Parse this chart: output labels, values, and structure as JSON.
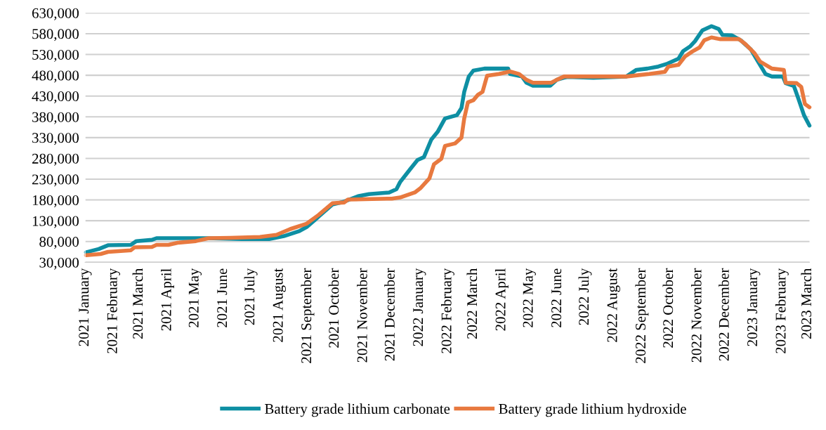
{
  "chart_data": {
    "type": "line",
    "legend": "bottom",
    "grid": "y",
    "line_style": "solid",
    "marker": "none",
    "xlim": [
      "2021-01-01",
      "2023-03-03"
    ],
    "xticks": [
      {
        "value": "2021-01-01",
        "label": "2021 January"
      },
      {
        "value": "2021-02-01",
        "label": "2021 February"
      },
      {
        "value": "2021-03-01",
        "label": "2021 March"
      },
      {
        "value": "2021-04-01",
        "label": "2021 April"
      },
      {
        "value": "2021-05-01",
        "label": "2021 May"
      },
      {
        "value": "2021-06-01",
        "label": "2021 June"
      },
      {
        "value": "2021-07-01",
        "label": "2021 July"
      },
      {
        "value": "2021-08-01",
        "label": "2021 August"
      },
      {
        "value": "2021-09-01",
        "label": "2021 September"
      },
      {
        "value": "2021-10-01",
        "label": "2021 October"
      },
      {
        "value": "2021-11-01",
        "label": "2021 November"
      },
      {
        "value": "2021-12-01",
        "label": "2021 December"
      },
      {
        "value": "2022-01-01",
        "label": "2022 January"
      },
      {
        "value": "2022-02-01",
        "label": "2022 February"
      },
      {
        "value": "2022-03-01",
        "label": "2022 March"
      },
      {
        "value": "2022-04-01",
        "label": "2022 April"
      },
      {
        "value": "2022-05-01",
        "label": "2022 May"
      },
      {
        "value": "2022-06-01",
        "label": "2022 June"
      },
      {
        "value": "2022-07-01",
        "label": "2022 July"
      },
      {
        "value": "2022-08-01",
        "label": "2022 August"
      },
      {
        "value": "2022-09-01",
        "label": "2022 September"
      },
      {
        "value": "2022-10-01",
        "label": "2022 October"
      },
      {
        "value": "2022-11-01",
        "label": "2022 November"
      },
      {
        "value": "2022-12-01",
        "label": "2022 December"
      },
      {
        "value": "2023-01-01",
        "label": "2023 January"
      },
      {
        "value": "2023-02-01",
        "label": "2023 February"
      },
      {
        "value": "2023-03-01",
        "label": "2023 March"
      }
    ],
    "ylim": [
      30000,
      630000
    ],
    "yticks": [
      {
        "value": 30000,
        "label": "30,000"
      },
      {
        "value": 80000,
        "label": "80,000"
      },
      {
        "value": 130000,
        "label": "130,000"
      },
      {
        "value": 180000,
        "label": "180,000"
      },
      {
        "value": 230000,
        "label": "230,000"
      },
      {
        "value": 280000,
        "label": "280,000"
      },
      {
        "value": 330000,
        "label": "330,000"
      },
      {
        "value": 380000,
        "label": "380,000"
      },
      {
        "value": 430000,
        "label": "430,000"
      },
      {
        "value": 480000,
        "label": "480,000"
      },
      {
        "value": 530000,
        "label": "530,000"
      },
      {
        "value": 580000,
        "label": "580,000"
      },
      {
        "value": 630000,
        "label": "630,000"
      }
    ],
    "series": [
      {
        "name": "Battery grade lithium carbonate",
        "color": "#0e8fa3",
        "x": [
          "2021-01-02",
          "2021-01-16",
          "2021-01-26",
          "2021-02-20",
          "2021-02-26",
          "2021-03-15",
          "2021-03-20",
          "2021-05-14",
          "2021-06-21",
          "2021-07-21",
          "2021-08-06",
          "2021-08-23",
          "2021-08-31",
          "2021-09-08",
          "2021-09-15",
          "2021-09-28",
          "2021-10-11",
          "2021-10-26",
          "2021-11-07",
          "2021-11-29",
          "2021-12-07",
          "2021-12-11",
          "2021-12-22",
          "2021-12-30",
          "2022-01-06",
          "2022-01-14",
          "2022-01-21",
          "2022-01-29",
          "2022-02-11",
          "2022-02-16",
          "2022-02-19",
          "2022-02-24",
          "2022-03-01",
          "2022-03-13",
          "2022-04-08",
          "2022-04-10",
          "2022-04-23",
          "2022-04-28",
          "2022-05-05",
          "2022-05-24",
          "2022-05-31",
          "2022-06-08",
          "2022-06-12",
          "2022-07-10",
          "2022-08-15",
          "2022-08-26",
          "2022-09-07",
          "2022-09-19",
          "2022-09-29",
          "2022-10-11",
          "2022-10-16",
          "2022-10-24",
          "2022-10-29",
          "2022-11-06",
          "2022-11-16",
          "2022-11-24",
          "2022-11-28",
          "2022-12-08",
          "2022-12-18",
          "2022-12-29",
          "2023-01-05",
          "2023-01-14",
          "2023-01-21",
          "2023-02-02",
          "2023-02-05",
          "2023-02-14",
          "2023-02-19",
          "2023-02-25",
          "2023-03-03"
        ],
        "values": [
          54000,
          62000,
          71000,
          72000,
          81000,
          84000,
          88000,
          88000,
          86000,
          86000,
          93000,
          105000,
          115000,
          130000,
          144000,
          169000,
          176000,
          189000,
          194000,
          198000,
          206000,
          223000,
          254000,
          276000,
          283000,
          325000,
          344000,
          376000,
          384000,
          401000,
          440000,
          477000,
          491000,
          496000,
          496000,
          483000,
          477000,
          462000,
          455000,
          455000,
          469000,
          474000,
          476000,
          474000,
          477000,
          493000,
          496000,
          501000,
          508000,
          520000,
          538000,
          550000,
          562000,
          588000,
          598000,
          591000,
          577000,
          576000,
          564000,
          542000,
          516000,
          483000,
          477000,
          477000,
          461000,
          454000,
          423000,
          384000,
          359000
        ]
      },
      {
        "name": "Battery grade lithium hydroxide",
        "color": "#e8793f",
        "x": [
          "2021-01-02",
          "2021-01-18",
          "2021-01-26",
          "2021-02-20",
          "2021-02-24",
          "2021-03-15",
          "2021-03-20",
          "2021-04-02",
          "2021-04-12",
          "2021-05-02",
          "2021-05-16",
          "2021-06-09",
          "2021-07-11",
          "2021-07-29",
          "2021-08-13",
          "2021-08-31",
          "2021-09-13",
          "2021-09-28",
          "2021-10-11",
          "2021-10-15",
          "2021-11-27",
          "2021-12-02",
          "2021-12-11",
          "2021-12-27",
          "2022-01-02",
          "2022-01-12",
          "2022-01-17",
          "2022-01-25",
          "2022-01-29",
          "2022-02-09",
          "2022-02-16",
          "2022-02-19",
          "2022-02-23",
          "2022-03-01",
          "2022-03-06",
          "2022-03-11",
          "2022-03-16",
          "2022-03-29",
          "2022-04-10",
          "2022-04-20",
          "2022-04-28",
          "2022-05-05",
          "2022-05-25",
          "2022-05-31",
          "2022-06-08",
          "2022-07-10",
          "2022-08-15",
          "2022-09-09",
          "2022-09-26",
          "2022-09-30",
          "2022-10-11",
          "2022-10-18",
          "2022-10-26",
          "2022-11-03",
          "2022-11-08",
          "2022-11-16",
          "2022-11-25",
          "2022-12-16",
          "2022-12-23",
          "2023-01-02",
          "2023-01-08",
          "2023-01-21",
          "2023-02-03",
          "2023-02-05",
          "2023-02-17",
          "2023-02-22",
          "2023-02-26",
          "2023-03-03"
        ],
        "values": [
          47000,
          50000,
          55000,
          59000,
          66000,
          67000,
          72000,
          72000,
          77000,
          81000,
          88000,
          89000,
          91000,
          96000,
          110000,
          123000,
          144000,
          172000,
          174000,
          181000,
          183000,
          183000,
          186000,
          198000,
          208000,
          232000,
          266000,
          279000,
          310000,
          316000,
          330000,
          376000,
          415000,
          420000,
          433000,
          440000,
          479000,
          483000,
          489000,
          483000,
          469000,
          462000,
          462000,
          469000,
          477000,
          477000,
          477000,
          483000,
          488000,
          501000,
          505000,
          525000,
          537000,
          547000,
          564000,
          571000,
          567000,
          567000,
          555000,
          533000,
          513000,
          496000,
          493000,
          462000,
          461000,
          452000,
          411000,
          403000
        ]
      }
    ]
  }
}
